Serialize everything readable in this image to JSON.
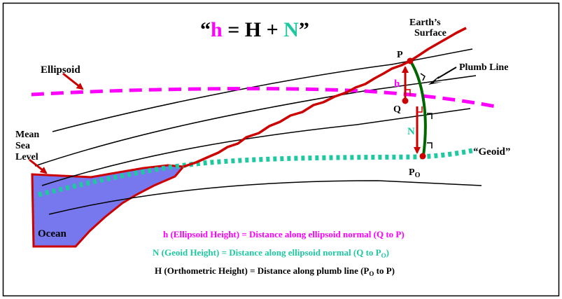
{
  "title": {
    "open_quote": "“",
    "h": "h",
    "eq1": " = H + ",
    "N": "N",
    "close_quote": "”"
  },
  "labels": {
    "earths_line1": "Earth’s",
    "earths_line2": "Surface",
    "ellipsoid": "Ellipsoid",
    "plumb_line": "Plumb Line",
    "msl_line1": "Mean",
    "msl_line2": "Sea",
    "msl_line3": "Level",
    "geoid": "“Geoid”",
    "ocean": "Ocean",
    "point_P": "P",
    "point_Q": "Q",
    "point_Po_main": "P",
    "point_Po_sub": "O",
    "h_letter": "h",
    "N_letter": "N"
  },
  "legend": {
    "line1": "h (Ellipsoid Height) = Distance along ellipsoid normal (Q to P)",
    "line2_main": "N (Geoid Height) = Distance along ellipsoid normal (Q to P",
    "line2_sub": "O",
    "line2_end": ")",
    "line3_start": "H (Orthometric Height) = Distance along plumb line (P",
    "line3_sub": "O",
    "line3_end": " to P)"
  },
  "colors": {
    "magenta": "#ff00ff",
    "teal": "#1fc8a0",
    "red": "#cc0000",
    "dark_red": "#aa1111",
    "green": "#006600",
    "ocean": "#7777ee",
    "black": "#000000",
    "frame": "#000000"
  }
}
